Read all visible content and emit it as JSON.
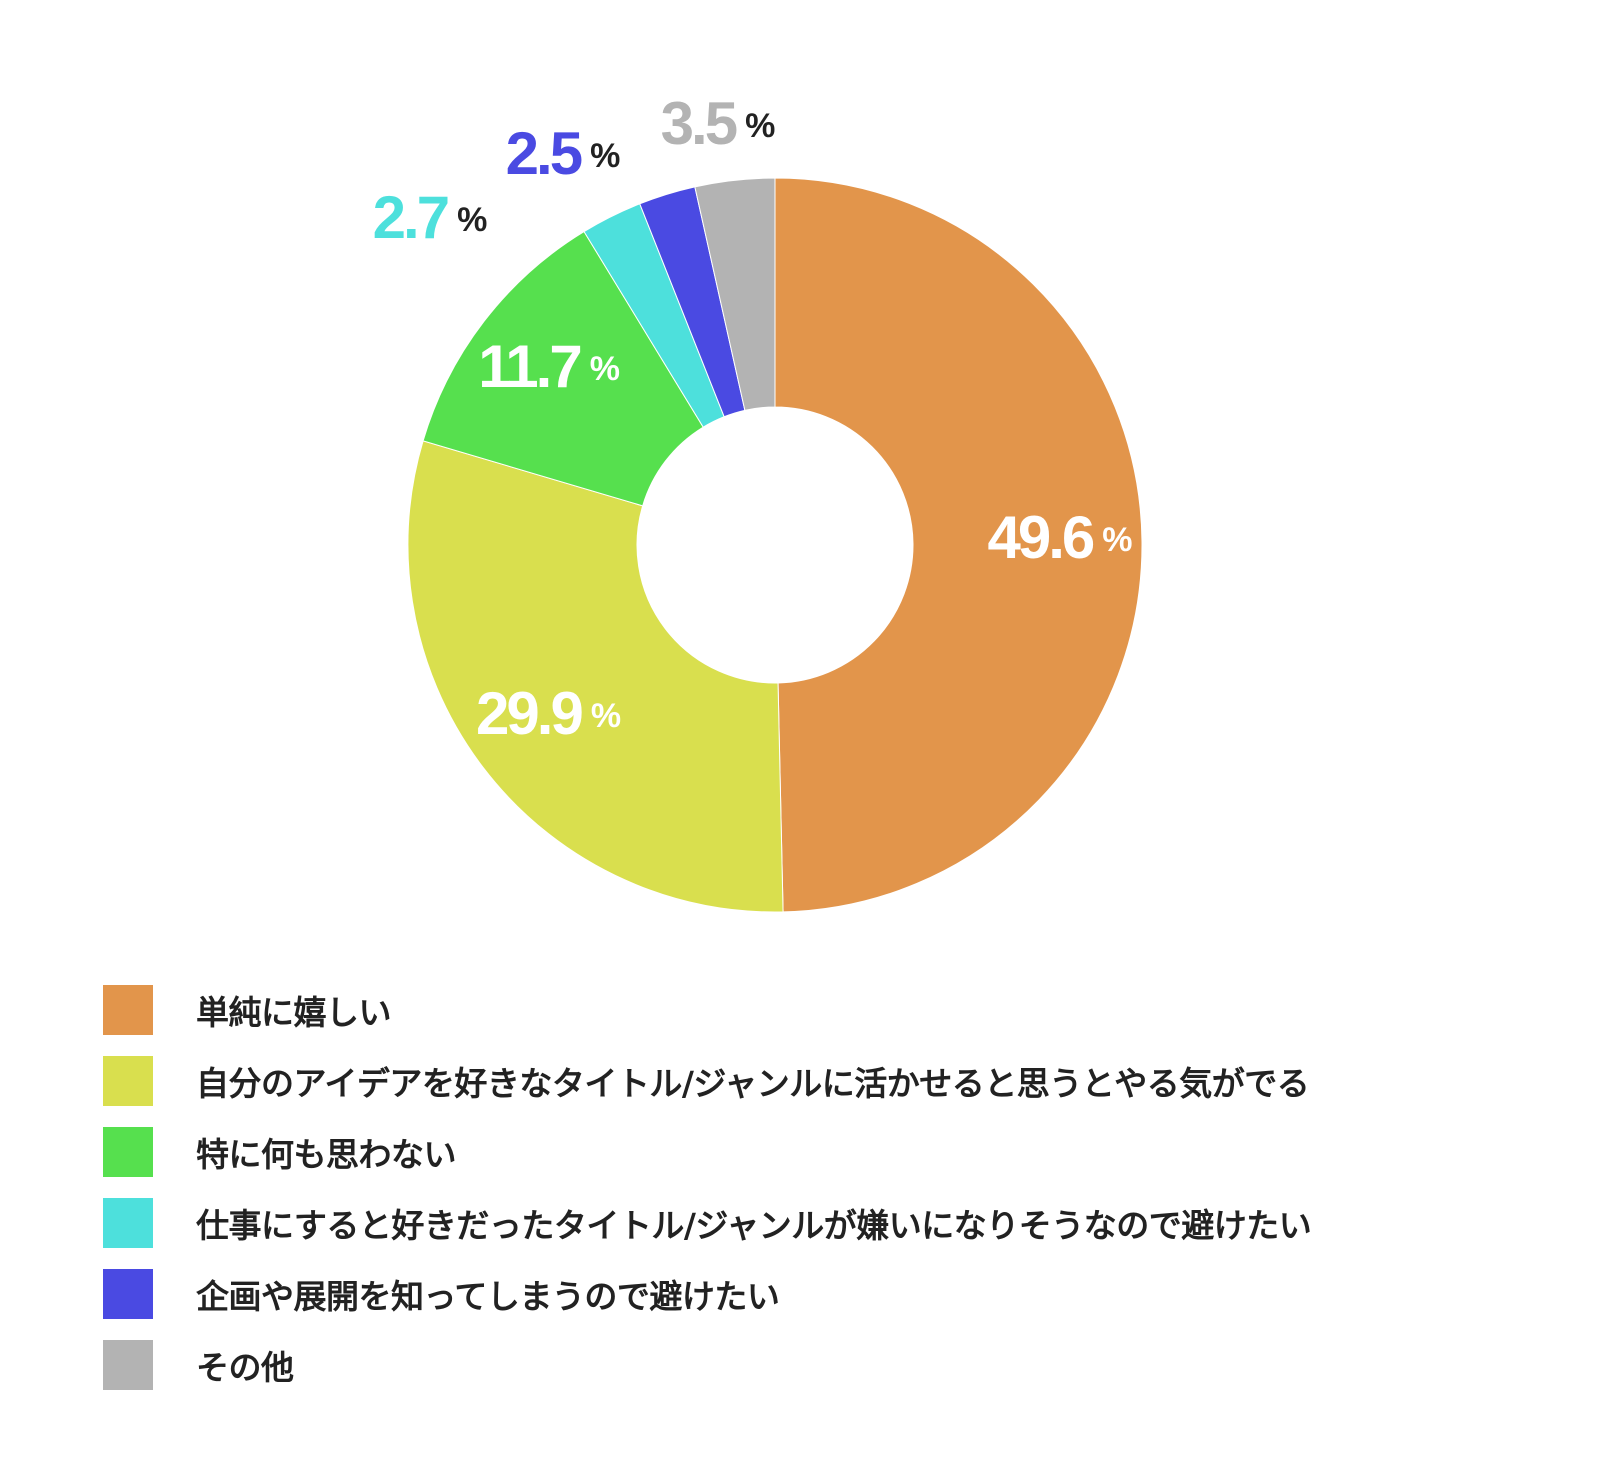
{
  "chart_data": {
    "type": "pie",
    "donut": true,
    "title": "",
    "value_suffix": "%",
    "slices": [
      {
        "label": "単純に嬉しい",
        "value": 49.6,
        "display": "49.6",
        "color": "#E2954B",
        "label_color": "#FFFFFF",
        "label_outside": false
      },
      {
        "label": "自分のアイデアを好きなタイトル/ジャンルに活かせると思うとやる気がでる",
        "value": 29.9,
        "display": "29.9",
        "color": "#D9DF4E",
        "label_color": "#FFFFFF",
        "label_outside": false
      },
      {
        "label": "特に何も思わない",
        "value": 11.7,
        "display": "11.7",
        "color": "#56E04E",
        "label_color": "#FFFFFF",
        "label_outside": false
      },
      {
        "label": "仕事にすると好きだったタイトル/ジャンルが嫌いになりそうなので避けたい",
        "value": 2.7,
        "display": "2.7",
        "color": "#4DE0DC",
        "label_color": "#4DE0DC",
        "label_outside": true
      },
      {
        "label": "企画や展開を知ってしまうので避けたい",
        "value": 2.5,
        "display": "2.5",
        "color": "#4A4AE2",
        "label_color": "#4A4AE2",
        "label_outside": true
      },
      {
        "label": "その他",
        "value": 3.5,
        "display": "3.5",
        "color": "#B3B3B3",
        "label_color": "#B3B3B3",
        "label_outside": true
      }
    ],
    "legend_position": "bottom-left",
    "start_angle": "top",
    "direction": "counterclockwise"
  }
}
